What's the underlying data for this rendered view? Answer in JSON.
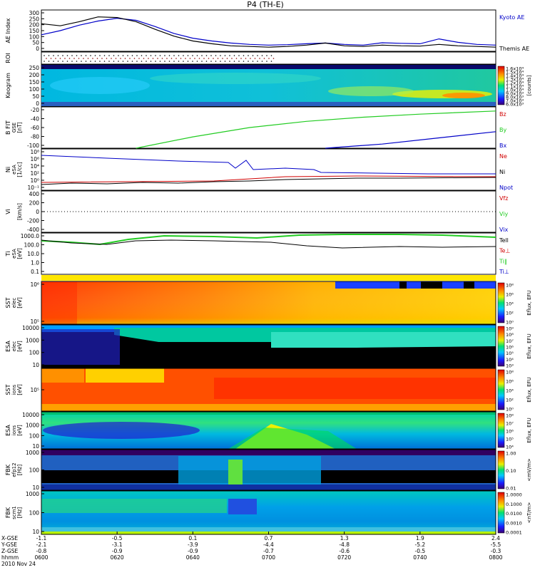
{
  "title": "P4 (TH-E)",
  "colors": {
    "kyoto": "#0000c8",
    "themis": "#000000",
    "red": "#d00000",
    "green": "#22cc22",
    "blue": "#0000c8"
  },
  "chart_data": {
    "type": "line",
    "time_axis": {
      "ticks": [
        "0600",
        "0620",
        "0640",
        "0700",
        "0720",
        "0740",
        "0800"
      ],
      "date": "2010 Nov 24",
      "rows": [
        {
          "label": "X-GSE",
          "values": [
            "-1.1",
            "-0.5",
            "0.1",
            "0.7",
            "1.3",
            "1.9",
            "2.4"
          ]
        },
        {
          "label": "Y-GSE",
          "values": [
            "-2.1",
            "-3.1",
            "-3.9",
            "-4.4",
            "-4.8",
            "-5.2",
            "-5.5"
          ]
        },
        {
          "label": "Z-GSE",
          "values": [
            "-0.8",
            "-0.9",
            "-0.9",
            "-0.7",
            "-0.6",
            "-0.5",
            "-0.3"
          ]
        },
        {
          "label": "hhmm",
          "values": [
            "0600",
            "0620",
            "0640",
            "0700",
            "0720",
            "0740",
            "0800"
          ]
        }
      ]
    },
    "panels": [
      {
        "id": "ae",
        "ylabel": "AE Index",
        "yticks": [
          "300",
          "250",
          "200",
          "150",
          "100",
          "50",
          "0"
        ],
        "ylim": [
          0,
          300
        ],
        "legend": [
          {
            "name": "Kyoto AE",
            "color": "#0000c8"
          },
          {
            "name": "Themis AE",
            "color": "#000000"
          }
        ],
        "series": [
          {
            "name": "Kyoto AE",
            "x": [
              0,
              5,
              10,
              15,
              20,
              25,
              30,
              35,
              40,
              45,
              50,
              55,
              60,
              65,
              70,
              75,
              80,
              85,
              90,
              95,
              100,
              105,
              110,
              115,
              120
            ],
            "values": [
              120,
              150,
              190,
              220,
              240,
              225,
              180,
              130,
              95,
              75,
              60,
              50,
              45,
              48,
              55,
              60,
              50,
              45,
              62,
              58,
              55,
              90,
              65,
              50,
              45
            ]
          },
          {
            "name": "Themis AE",
            "x": [
              0,
              5,
              10,
              15,
              20,
              25,
              30,
              35,
              40,
              45,
              50,
              55,
              60,
              65,
              70,
              75,
              80,
              85,
              90,
              95,
              100,
              105,
              110,
              115,
              120
            ],
            "values": [
              200,
              185,
              215,
              250,
              245,
              215,
              160,
              110,
              75,
              55,
              40,
              35,
              30,
              35,
              45,
              60,
              40,
              35,
              45,
              40,
              38,
              50,
              40,
              35,
              30
            ]
          }
        ]
      },
      {
        "id": "roi",
        "ylabel": "ROI"
      },
      {
        "id": "keogram",
        "ylabel": "Keogram",
        "yticks": [
          "250",
          "200",
          "150",
          "100",
          "50",
          "0"
        ],
        "cbar_label": "[counts]",
        "cbar_ticks": [
          "1.6x10⁴",
          "1.5x10⁴",
          "1.4x10⁴",
          "1.3x10⁴",
          "1.2x10⁴",
          "1.1x10⁴",
          "1.0x10⁴",
          "9.0x10³",
          "8.0x10³",
          "7.0x10³",
          "6.0x10³"
        ]
      },
      {
        "id": "bfield",
        "ylabel": "B FIT",
        "ylabel2": "[nT]",
        "ylabel3": "GSE",
        "yticks": [
          "-20",
          "-40",
          "-60",
          "-80",
          "-100"
        ],
        "ylim": [
          -100,
          -20
        ],
        "legend": [
          {
            "name": "Bz",
            "color": "#d00000"
          },
          {
            "name": "By",
            "color": "#22cc22"
          },
          {
            "name": "Bx",
            "color": "#0000c8"
          }
        ],
        "series": [
          {
            "name": "By",
            "x": [
              25,
              40,
              55,
              70,
              85,
              100,
              120
            ],
            "values": [
              -100,
              -78,
              -60,
              -48,
              -40,
              -34,
              -28
            ]
          },
          {
            "name": "Bx",
            "x": [
              75,
              90,
              105,
              120
            ],
            "values": [
              -100,
              -92,
              -80,
              -68
            ]
          }
        ]
      },
      {
        "id": "density",
        "ylabel": "Ni",
        "ylabel2": "[1/cc]",
        "ylabel3": "eSA",
        "yticks": [
          "10⁸",
          "10⁶",
          "10⁴",
          "10²",
          "10⁰",
          "10⁻¹"
        ],
        "legend": [
          {
            "name": "Ne",
            "color": "#d00000"
          },
          {
            "name": "Ni",
            "color": "#000000"
          },
          {
            "name": "Npot",
            "color": "#0000c8"
          }
        ]
      },
      {
        "id": "velocity",
        "ylabel": "Vi",
        "ylabel2": "[km/s]",
        "yticks": [
          "400",
          "200",
          "0",
          "-200",
          "-400"
        ],
        "ylim": [
          -400,
          400
        ],
        "legend": [
          {
            "name": "Vfz",
            "color": "#d00000"
          },
          {
            "name": "Viy",
            "color": "#22cc22"
          },
          {
            "name": "Vix",
            "color": "#0000c8"
          }
        ]
      },
      {
        "id": "temperature",
        "ylabel": "Ti",
        "ylabel2": "[eV]",
        "ylabel3": "eSA",
        "yticks": [
          "1000.0",
          "100.0",
          "10.0",
          "1.0",
          "0.1"
        ],
        "legend": [
          {
            "name": "Tell",
            "color": "#000000"
          },
          {
            "name": "Te⊥",
            "color": "#d00000"
          },
          {
            "name": "Ti‖",
            "color": "#22cc22"
          },
          {
            "name": "Ti⊥",
            "color": "#0000c8"
          }
        ]
      },
      {
        "id": "sst_e",
        "ylabel": "SST",
        "ylabel2": "[eV]",
        "ylabel3": "elec",
        "yticks": [
          "10⁶",
          "10⁵"
        ],
        "cbar_label": "Eflux, EFU",
        "cbar_ticks": [
          "10⁸",
          "10⁶",
          "10⁴",
          "10²",
          "10⁰"
        ]
      },
      {
        "id": "esa_e",
        "ylabel": "ESA",
        "ylabel2": "[eV]",
        "ylabel3": "elec",
        "yticks": [
          "10000",
          "1000",
          "100",
          "10"
        ],
        "cbar_label": "Eflux, EFU",
        "cbar_ticks": [
          "10⁹",
          "10⁸",
          "10⁷",
          "10⁶",
          "10⁵",
          "10⁴",
          "10³"
        ]
      },
      {
        "id": "sst_i",
        "ylabel": "SST",
        "ylabel2": "[eV]",
        "ylabel3": "ions",
        "yticks": [
          "10⁵"
        ],
        "cbar_label": "Eflux, EFU",
        "cbar_ticks": [
          "10⁸",
          "10⁶",
          "10⁴",
          "10²",
          "10⁰"
        ]
      },
      {
        "id": "esa_i",
        "ylabel": "ESA",
        "ylabel2": "[eV]",
        "ylabel3": "ions",
        "yticks": [
          "10000",
          "1000",
          "100",
          "10"
        ],
        "cbar_label": "Eflux, EFU",
        "cbar_ticks": [
          "10⁸",
          "10⁷",
          "10⁶",
          "10⁵",
          "10⁴"
        ]
      },
      {
        "id": "fbk_e",
        "ylabel": "FBK",
        "ylabel2": "[Hz]",
        "ylabel3": "efp12",
        "yticks": [
          "1000",
          "100",
          "10"
        ],
        "cbar_label": "<mV/m>",
        "cbar_ticks": [
          "1.00",
          "0.10",
          "0.01"
        ]
      },
      {
        "id": "fbk_b",
        "ylabel": "FBK",
        "ylabel2": "[Hz]",
        "ylabel3": "scm1",
        "yticks": [
          "1000",
          "100",
          "10"
        ],
        "cbar_label": "<nT/m>",
        "cbar_ticks": [
          "1.0000",
          "0.1000",
          "0.0100",
          "0.0010",
          "0.0001"
        ]
      }
    ]
  }
}
